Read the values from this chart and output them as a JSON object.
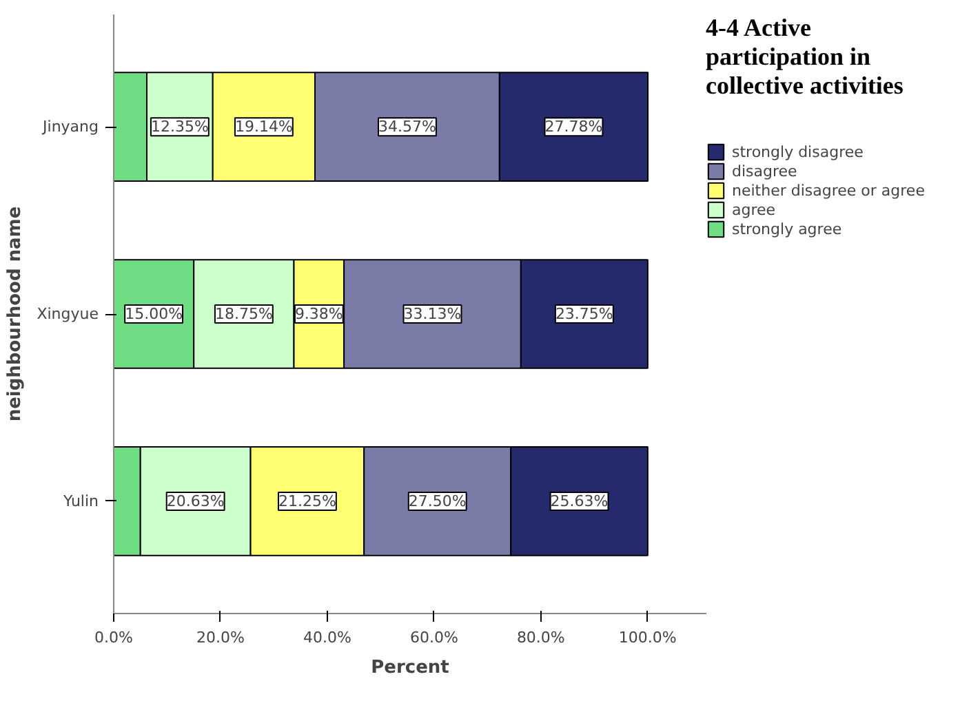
{
  "chart_data": {
    "type": "bar",
    "orientation": "horizontal",
    "stacked": true,
    "title": "4-4 Active participation in collective activities",
    "xlabel": "Percent",
    "ylabel": "neighbourhood name",
    "categories": [
      "Jinyang",
      "Xingyue",
      "Yulin"
    ],
    "series": [
      {
        "name": "strongly agree",
        "color": "#70dc84",
        "values": [
          6.2,
          15.0,
          5.0
        ],
        "value_labels": [
          null,
          "15.00%",
          null
        ]
      },
      {
        "name": "agree",
        "color": "#ccffcc",
        "values": [
          12.35,
          18.75,
          20.63
        ],
        "value_labels": [
          "12.35%",
          "18.75%",
          "20.63%"
        ]
      },
      {
        "name": "neither disagree or agree",
        "color": "#ffff73",
        "values": [
          19.14,
          9.38,
          21.25
        ],
        "value_labels": [
          "19.14%",
          "9.38%",
          "21.25%"
        ]
      },
      {
        "name": "disagree",
        "color": "#7b7ba8",
        "values": [
          34.57,
          33.13,
          27.5
        ],
        "value_labels": [
          "34.57%",
          "33.13%",
          "27.50%"
        ]
      },
      {
        "name": "strongly disagree",
        "color": "#242a6c",
        "values": [
          27.78,
          23.75,
          25.63
        ],
        "value_labels": [
          "27.78%",
          "23.75%",
          "25.63%"
        ]
      }
    ],
    "xlim": [
      0,
      111
    ],
    "xticks": [
      {
        "value": 0,
        "label": "0.0%"
      },
      {
        "value": 20,
        "label": "20.0%"
      },
      {
        "value": 40,
        "label": "40.0%"
      },
      {
        "value": 60,
        "label": "60.0%"
      },
      {
        "value": 80,
        "label": "80.0%"
      },
      {
        "value": 100,
        "label": "100.0%"
      }
    ],
    "grid": false,
    "legend": "right"
  }
}
